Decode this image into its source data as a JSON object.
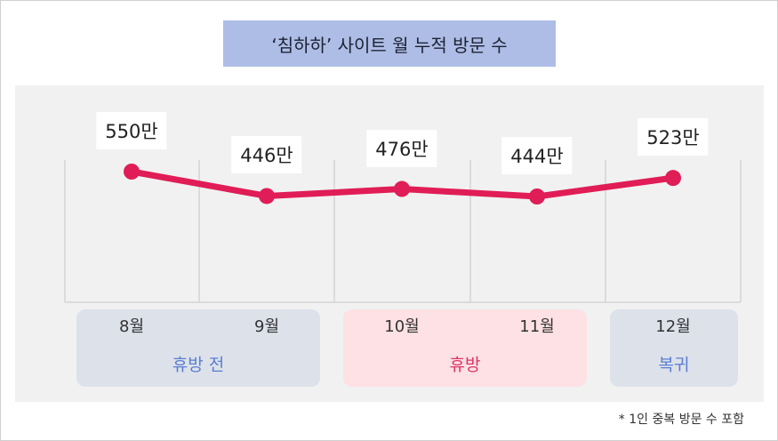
{
  "chart_data": {
    "type": "line",
    "title": "‘침하하’ 사이트 월 누적 방문 수",
    "categories": [
      "8월",
      "9월",
      "10월",
      "11월",
      "12월"
    ],
    "series": [
      {
        "values": [
          550,
          446,
          476,
          444,
          523
        ]
      }
    ],
    "data_labels": [
      "550만",
      "446만",
      "476만",
      "444만",
      "523만"
    ],
    "ylim": [
      0,
      600
    ],
    "grid": "vertical",
    "line_color": "#e01d56",
    "groups": [
      {
        "label": "휴방 전",
        "months": [
          "8월",
          "9월"
        ],
        "bg_color": "#dde1ea",
        "text_color": "#5a7fd0"
      },
      {
        "label": "휴방",
        "months": [
          "10월",
          "11월"
        ],
        "bg_color": "#fde1e4",
        "text_color": "#e0336a"
      },
      {
        "label": "복귀",
        "months": [
          "12월"
        ],
        "bg_color": "#dde1ea",
        "text_color": "#5a7fd0"
      }
    ],
    "footnote": "* 1인 중복 방문 수 포함"
  }
}
